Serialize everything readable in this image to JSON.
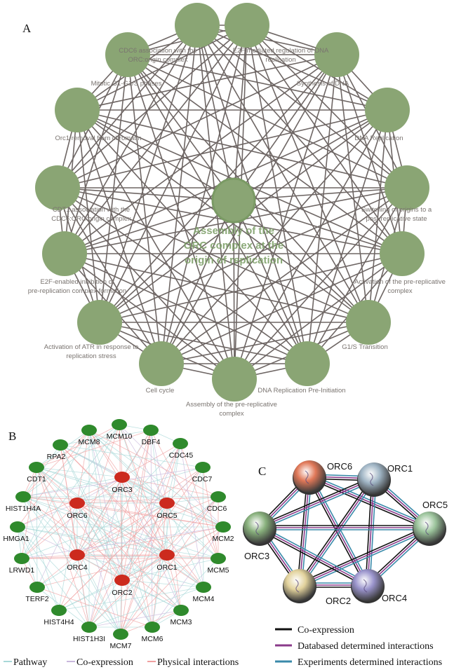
{
  "panel_a": {
    "letter": "A",
    "center_label": [
      "Assembly of the",
      "ORC complex at the",
      "origin of replication"
    ],
    "nodes": [
      [
        "CDC6 association with the",
        "ORC:origin complex"
      ],
      [
        "E2F mediated regulation of DNA",
        "replication"
      ],
      [
        "Synthesis of DNA"
      ],
      [
        "DNA Replication"
      ],
      [
        "Switching of origins to a",
        "post-replicative state"
      ],
      [
        "Activation of the pre-replicative",
        "complex"
      ],
      [
        "G1/S Transition"
      ],
      [
        "DNA Replication Pre-Initiation"
      ],
      [
        "Assembly of the pre-replicative",
        "complex"
      ],
      [
        "Cell cycle"
      ],
      [
        "Activation of ATR in response to",
        "replication stress"
      ],
      [
        "E2F-enabled inhibition of",
        "pre-replication complex formation"
      ],
      [
        "CDT1 association with the",
        "CDC6:ORC:origin complex"
      ],
      [
        "Orc1 removal from chromatin"
      ],
      [
        "Mitotic G1-G1/S phases"
      ]
    ],
    "colors": {
      "node": "#8aa574",
      "edge": "#6e6664"
    }
  },
  "panel_b": {
    "letter": "B",
    "query_genes": [
      "ORC3",
      "ORC6",
      "ORC5",
      "ORC4",
      "ORC1",
      "ORC2"
    ],
    "related_genes": [
      "MCM10",
      "MCM8",
      "DBF4",
      "RPA2",
      "CDC45",
      "CDT1",
      "CDC7",
      "HIST1H4A",
      "CDC6",
      "HMGA1",
      "MCM2",
      "LRWD1",
      "MCM5",
      "TERF2",
      "MCM4",
      "HIST4H4",
      "MCM3",
      "HIST1H3I",
      "MCM7",
      "MCM6"
    ],
    "legend": [
      {
        "label": "Pathway",
        "color": "#a8d8d8"
      },
      {
        "label": "Co-expression",
        "color": "#c9b8dc"
      },
      {
        "label": "Physical interactions",
        "color": "#f0a0a0"
      }
    ],
    "colors": {
      "query": "#cc2a1e",
      "related": "#2f8a2c"
    }
  },
  "panel_c": {
    "letter": "C",
    "nodes": [
      {
        "label": "ORC6",
        "color": "#e07858"
      },
      {
        "label": "ORC1",
        "color": "#9fb4c4"
      },
      {
        "label": "ORC5",
        "color": "#9cc49c"
      },
      {
        "label": "ORC3",
        "color": "#88b07c"
      },
      {
        "label": "ORC2",
        "color": "#e2d29c"
      },
      {
        "label": "ORC4",
        "color": "#9a94cc"
      }
    ],
    "legend": [
      {
        "label": "Co-expression",
        "color": "#111111"
      },
      {
        "label": "Databased determined interactions",
        "color": "#8a3a8a"
      },
      {
        "label": "Experiments determined interactions",
        "color": "#3a8aaa"
      }
    ]
  }
}
